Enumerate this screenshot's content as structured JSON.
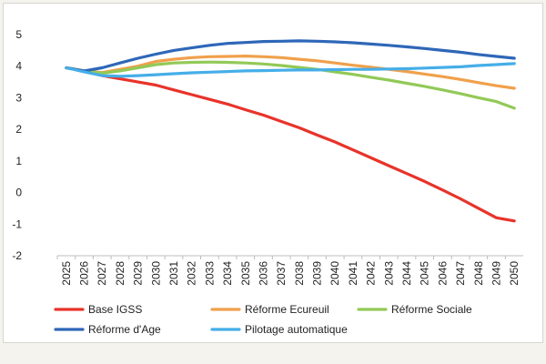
{
  "chart_data": {
    "type": "line",
    "title": "",
    "xlabel": "",
    "ylabel": "",
    "ylim": [
      -2,
      5
    ],
    "yticks": [
      "5",
      "4",
      "3",
      "2",
      "1",
      "0",
      "-1",
      "-2"
    ],
    "grid": false,
    "legend_position": "bottom",
    "categories": [
      "2025",
      "2026",
      "2027",
      "2028",
      "2029",
      "2030",
      "2031",
      "2032",
      "2033",
      "2034",
      "2035",
      "2036",
      "2037",
      "2038",
      "2039",
      "2040",
      "2041",
      "2042",
      "2043",
      "2044",
      "2045",
      "2046",
      "2047",
      "2048",
      "2049",
      "2050"
    ],
    "series": [
      {
        "name": "Base IGSS",
        "color": "#e8332a",
        "values": [
          3.95,
          3.85,
          3.7,
          3.6,
          3.5,
          3.4,
          3.25,
          3.1,
          2.95,
          2.8,
          2.62,
          2.45,
          2.25,
          2.05,
          1.82,
          1.6,
          1.35,
          1.1,
          0.85,
          0.6,
          0.35,
          0.08,
          -0.2,
          -0.5,
          -0.8,
          -0.9
        ]
      },
      {
        "name": "Réforme Ecureuil",
        "color": "#f0a04b",
        "values": [
          3.95,
          3.85,
          3.8,
          3.9,
          4.0,
          4.15,
          4.22,
          4.27,
          4.3,
          4.31,
          4.32,
          4.3,
          4.27,
          4.22,
          4.17,
          4.1,
          4.03,
          3.97,
          3.9,
          3.83,
          3.75,
          3.67,
          3.58,
          3.48,
          3.38,
          3.3
        ]
      },
      {
        "name": "Réforme Sociale",
        "color": "#92c957",
        "values": [
          3.95,
          3.85,
          3.78,
          3.85,
          3.95,
          4.05,
          4.1,
          4.12,
          4.13,
          4.12,
          4.1,
          4.07,
          4.02,
          3.96,
          3.9,
          3.82,
          3.74,
          3.65,
          3.56,
          3.46,
          3.36,
          3.25,
          3.13,
          3.0,
          2.88,
          2.67
        ]
      },
      {
        "name": "Réforme d'Age",
        "color": "#2e67b8",
        "values": [
          3.95,
          3.85,
          3.95,
          4.1,
          4.25,
          4.38,
          4.5,
          4.58,
          4.66,
          4.72,
          4.75,
          4.78,
          4.79,
          4.8,
          4.79,
          4.77,
          4.74,
          4.7,
          4.66,
          4.61,
          4.56,
          4.5,
          4.44,
          4.37,
          4.31,
          4.25
        ]
      },
      {
        "name": "Pilotage automatique",
        "color": "#45aee8",
        "values": [
          3.95,
          3.82,
          3.7,
          3.68,
          3.7,
          3.73,
          3.76,
          3.79,
          3.81,
          3.83,
          3.85,
          3.86,
          3.87,
          3.88,
          3.88,
          3.89,
          3.9,
          3.9,
          3.91,
          3.92,
          3.94,
          3.96,
          3.98,
          4.02,
          4.05,
          4.08
        ]
      }
    ]
  }
}
